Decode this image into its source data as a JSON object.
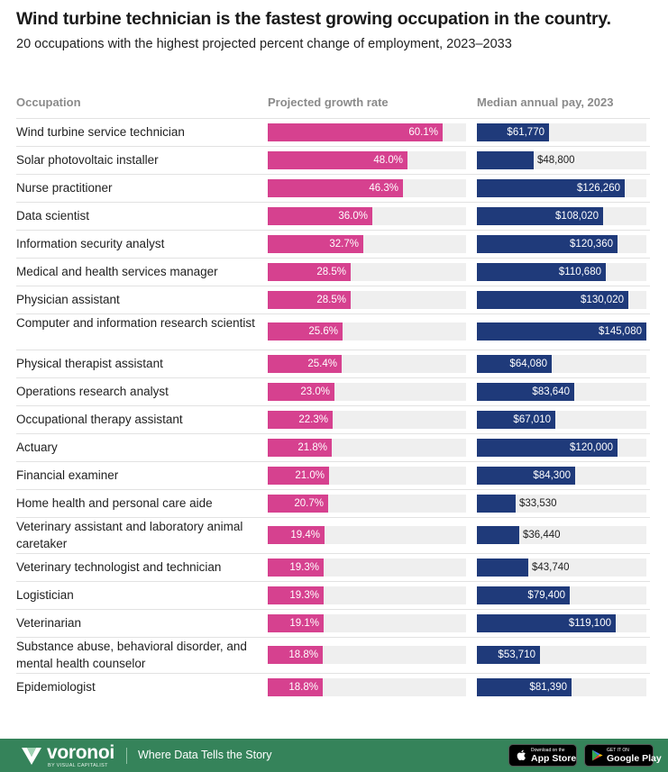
{
  "header": {
    "title": "Wind turbine technician is the fastest growing occupation in the country.",
    "subtitle": "20 occupations with the highest projected percent change of employment, 2023–2033"
  },
  "columns": {
    "occupation": "Occupation",
    "growth": "Projected growth rate",
    "pay": "Median annual pay, 2023"
  },
  "colors": {
    "growth_bar": "#d6418f",
    "pay_bar": "#1f3a7a",
    "track": "#efefef",
    "footer": "#35835a"
  },
  "chart_data": {
    "type": "bar",
    "orientation": "horizontal",
    "categories": [
      "Wind turbine service technician",
      "Solar photovoltaic installer",
      "Nurse practitioner",
      "Data scientist",
      "Information security analyst",
      "Medical and health services manager",
      "Physician assistant",
      "Computer and information research scientist",
      "Physical therapist assistant",
      "Operations research analyst",
      "Occupational therapy assistant",
      "Actuary",
      "Financial examiner",
      "Home health and personal care aide",
      "Veterinary assistant and laboratory animal caretaker",
      "Veterinary technologist and technician",
      "Logistician",
      "Veterinarian",
      "Substance abuse, behavioral disorder, and mental health counselor",
      "Epidemiologist"
    ],
    "series": [
      {
        "name": "Projected growth rate",
        "unit": "%",
        "values": [
          60.1,
          48.0,
          46.3,
          36.0,
          32.7,
          28.5,
          28.5,
          25.6,
          25.4,
          23.0,
          22.3,
          21.8,
          21.0,
          20.7,
          19.4,
          19.3,
          19.3,
          19.1,
          18.8,
          18.8
        ],
        "labels": [
          "60.1%",
          "48.0%",
          "46.3%",
          "36.0%",
          "32.7%",
          "28.5%",
          "28.5%",
          "25.6%",
          "25.4%",
          "23.0%",
          "22.3%",
          "21.8%",
          "21.0%",
          "20.7%",
          "19.4%",
          "19.3%",
          "19.3%",
          "19.1%",
          "18.8%",
          "18.8%"
        ],
        "xlim": [
          0,
          68
        ]
      },
      {
        "name": "Median annual pay, 2023",
        "unit": "$",
        "values": [
          61770,
          48800,
          126260,
          108020,
          120360,
          110680,
          130020,
          145080,
          64080,
          83640,
          67010,
          120000,
          84300,
          33530,
          36440,
          43740,
          79400,
          119100,
          53710,
          81390
        ],
        "labels": [
          "$61,770",
          "$48,800",
          "$126,260",
          "$108,020",
          "$120,360",
          "$110,680",
          "$130,020",
          "$145,080",
          "$64,080",
          "$83,640",
          "$67,010",
          "$120,000",
          "$84,300",
          "$33,530",
          "$36,440",
          "$43,740",
          "$79,400",
          "$119,100",
          "$53,710",
          "$81,390"
        ],
        "xlim": [
          0,
          145080
        ]
      }
    ]
  },
  "footer": {
    "brand": "voronoi",
    "brand_sub": "BY VISUAL CAPITALIST",
    "tagline": "Where Data Tells the Story",
    "app_store_small": "Download on the",
    "app_store_big": "App Store",
    "google_play_small": "GET IT ON",
    "google_play_big": "Google Play"
  }
}
